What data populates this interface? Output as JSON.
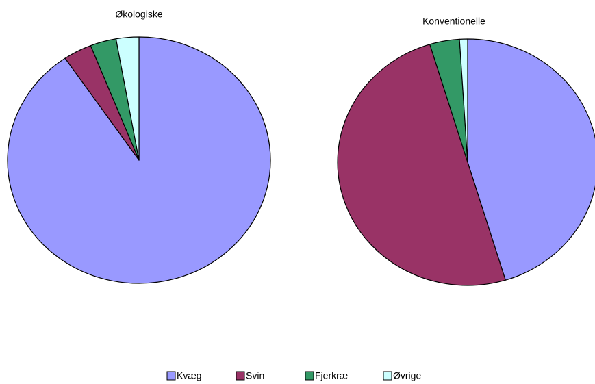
{
  "chart_data": [
    {
      "type": "pie",
      "title": "Økologiske",
      "categories": [
        "Kvæg",
        "Svin",
        "Fjerkræ",
        "Øvrige"
      ],
      "values": [
        90.5,
        3.5,
        3.2,
        2.8
      ],
      "colors": [
        "#9999ff",
        "#993366",
        "#339966",
        "#ccffff"
      ]
    },
    {
      "type": "pie",
      "title": "Konventionelle",
      "categories": [
        "Kvæg",
        "Svin",
        "Fjerkræ",
        "Øvrige"
      ],
      "values": [
        45.3,
        50,
        3.7,
        1
      ],
      "colors": [
        "#9999ff",
        "#993366",
        "#339966",
        "#ccffff"
      ]
    }
  ]
}
